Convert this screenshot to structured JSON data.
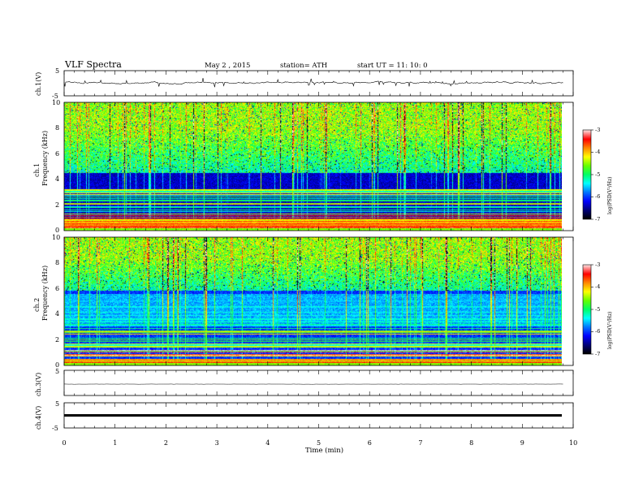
{
  "header": {
    "title": "VLF  Spectra",
    "date": "May 2  , 2015",
    "station": "station= ATH",
    "start": "start  UT  =    11: 10: 0"
  },
  "chart_data": [
    {
      "type": "line",
      "panel": "ch1-waveform",
      "ylabel": "ch.1(V)",
      "ylim": [
        -5,
        5
      ],
      "yticks": [
        "5",
        "-5"
      ],
      "xlim": [
        0,
        10
      ],
      "description_level": 0.2
    },
    {
      "type": "heatmap",
      "panel": "ch1-spectrogram",
      "ylabel_channel": "ch.1",
      "ylabel": "Frequency  (kHz)",
      "xlim": [
        0,
        10
      ],
      "ylim": [
        0,
        10
      ],
      "yticks": [
        "0",
        "2",
        "4",
        "6",
        "8",
        "10"
      ],
      "colorbar": {
        "label": "log(PSD(V²/Hz)",
        "range": [
          -7,
          -3
        ],
        "ticks": [
          "-3",
          "-4",
          "-5",
          "-6",
          "-7"
        ]
      },
      "broadband_above_khz": 4.5
    },
    {
      "type": "heatmap",
      "panel": "ch2-spectrogram",
      "ylabel_channel": "ch.2",
      "ylabel": "Frequency  (kHz)",
      "xlim": [
        0,
        10
      ],
      "ylim": [
        0,
        10
      ],
      "yticks": [
        "0",
        "2",
        "4",
        "6",
        "8",
        "10"
      ],
      "colorbar": {
        "label": "log(PSD(V²/Hz)",
        "range": [
          -7,
          -3
        ],
        "ticks": [
          "-3",
          "-4",
          "-5",
          "-6",
          "-7"
        ]
      },
      "broadband_above_khz": 5.8
    },
    {
      "type": "line",
      "panel": "ch3-waveform",
      "ylabel": "ch.3(V)",
      "ylim": [
        -5,
        5
      ],
      "yticks": [
        "5",
        "-5"
      ],
      "level": -0.5
    },
    {
      "type": "line",
      "panel": "ch4-waveform",
      "ylabel": "ch.4(V)",
      "ylim": [
        -5,
        5
      ],
      "yticks": [
        "5",
        "-5"
      ],
      "level": 0
    }
  ],
  "xaxis": {
    "label": "Time  (min)",
    "ticks": [
      "0",
      "1",
      "2",
      "3",
      "4",
      "5",
      "6",
      "7",
      "8",
      "9",
      "10"
    ],
    "data_end": 9.8
  },
  "colors": {
    "colormap": [
      "#000000",
      "#00007a",
      "#0000ff",
      "#0077ff",
      "#00ffff",
      "#00ff66",
      "#66ff00",
      "#ffff00",
      "#ff8800",
      "#ff0000",
      "#ffdddd"
    ],
    "line": "#000000"
  }
}
